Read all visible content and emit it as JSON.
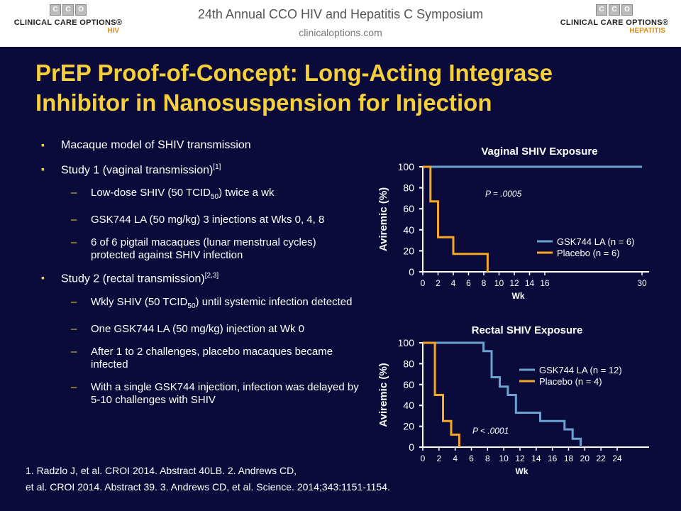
{
  "header": {
    "title": "24th Annual CCO HIV and Hepatitis C Symposium",
    "url": "clinicaloptions.com",
    "logo_left": {
      "letters": [
        "C",
        "C",
        "O"
      ],
      "text": "CLINICAL CARE OPTIONS®",
      "sub": "HIV"
    },
    "logo_right": {
      "letters": [
        "C",
        "C",
        "O"
      ],
      "text": "CLINICAL CARE OPTIONS®",
      "sub": "HEPATITIS"
    }
  },
  "slide": {
    "title_line1": "PrEP Proof-of-Concept: Long-Acting Integrase",
    "title_line2": "Inhibitor in Nanosuspension for Injection"
  },
  "bullets": {
    "b1": "Macaque model of SHIV transmission",
    "b2_text": "Study 1 (vaginal transmission)",
    "b2_ref": "[1]",
    "b2_1_a": "Low-dose SHIV (50 TCID",
    "b2_1_sub": "50",
    "b2_1_b": ") twice a wk",
    "b2_2": "GSK744 LA (50 mg/kg) 3 injections at Wks 0, 4, 8",
    "b2_3": "6 of 6 pigtail macaques (lunar menstrual cycles) protected against SHIV infection",
    "b3_text": "Study 2 (rectal transmission)",
    "b3_ref": "[2,3]",
    "b3_1_a": "Wkly SHIV (50 TCID",
    "b3_1_sub": "50",
    "b3_1_b": ") until systemic infection detected",
    "b3_2": "One GSK744 LA (50 mg/kg) injection at Wk 0",
    "b3_3": "After 1 to 2 challenges, placebo macaques became infected",
    "b3_4": "With a single GSK744 injection, infection was delayed by 5-10 challenges with SHIV"
  },
  "references": {
    "line1": "1. Radzlo J, et al. CROI 2014. Abstract 40LB. 2. Andrews CD,",
    "line2": "et al. CROI 2014. Abstract 39. 3. Andrews CD, et al. Science. 2014;343:1151-1154."
  },
  "colors": {
    "gsk": "#6aa3d0",
    "placebo": "#f5a623",
    "title": "#f5d03b",
    "bg": "#0b0b3b"
  },
  "chart_data": [
    {
      "type": "line",
      "step": true,
      "title": "Vaginal SHIV Exposure",
      "xlabel": "Wk",
      "ylabel": "Aviremic (%)",
      "x_ticks": [
        0,
        2,
        4,
        6,
        8,
        10,
        12,
        14,
        16,
        30
      ],
      "y_ticks": [
        0,
        20,
        40,
        60,
        80,
        100
      ],
      "ylim": [
        0,
        100
      ],
      "annotation": "P = .0005",
      "legend": "right",
      "series": [
        {
          "name": "GSK744 LA (n = 6)",
          "color": "#6aa3d0",
          "points": [
            [
              0,
              100
            ],
            [
              30,
              100
            ]
          ]
        },
        {
          "name": "Placebo (n = 6)",
          "color": "#f5a623",
          "points": [
            [
              0,
              100
            ],
            [
              1,
              100
            ],
            [
              1,
              67
            ],
            [
              2,
              67
            ],
            [
              2,
              33
            ],
            [
              4,
              33
            ],
            [
              4,
              17
            ],
            [
              8.5,
              17
            ],
            [
              8.5,
              0
            ]
          ]
        }
      ]
    },
    {
      "type": "line",
      "step": true,
      "title": "Rectal SHIV Exposure",
      "xlabel": "Wk",
      "ylabel": "Aviremic (%)",
      "x_ticks": [
        0,
        2,
        4,
        6,
        8,
        10,
        12,
        14,
        16,
        18,
        20,
        22,
        24
      ],
      "y_ticks": [
        0,
        20,
        40,
        60,
        80,
        100
      ],
      "ylim": [
        0,
        100
      ],
      "annotation": "P < .0001",
      "legend": "right",
      "series": [
        {
          "name": "GSK744 LA (n = 12)",
          "color": "#6aa3d0",
          "points": [
            [
              0,
              100
            ],
            [
              7.5,
              100
            ],
            [
              7.5,
              92
            ],
            [
              8.5,
              92
            ],
            [
              8.5,
              67
            ],
            [
              9.5,
              67
            ],
            [
              9.5,
              58
            ],
            [
              10.5,
              58
            ],
            [
              10.5,
              50
            ],
            [
              11.5,
              50
            ],
            [
              11.5,
              33
            ],
            [
              14.5,
              33
            ],
            [
              14.5,
              25
            ],
            [
              17.5,
              25
            ],
            [
              17.5,
              17
            ],
            [
              18.5,
              17
            ],
            [
              18.5,
              8
            ],
            [
              19.5,
              8
            ],
            [
              19.5,
              0
            ]
          ]
        },
        {
          "name": "Placebo (n = 4)",
          "color": "#f5a623",
          "points": [
            [
              0,
              100
            ],
            [
              1.5,
              100
            ],
            [
              1.5,
              50
            ],
            [
              2.5,
              50
            ],
            [
              2.5,
              25
            ],
            [
              3.5,
              25
            ],
            [
              3.5,
              12
            ],
            [
              4.5,
              12
            ],
            [
              4.5,
              0
            ]
          ]
        }
      ]
    }
  ]
}
